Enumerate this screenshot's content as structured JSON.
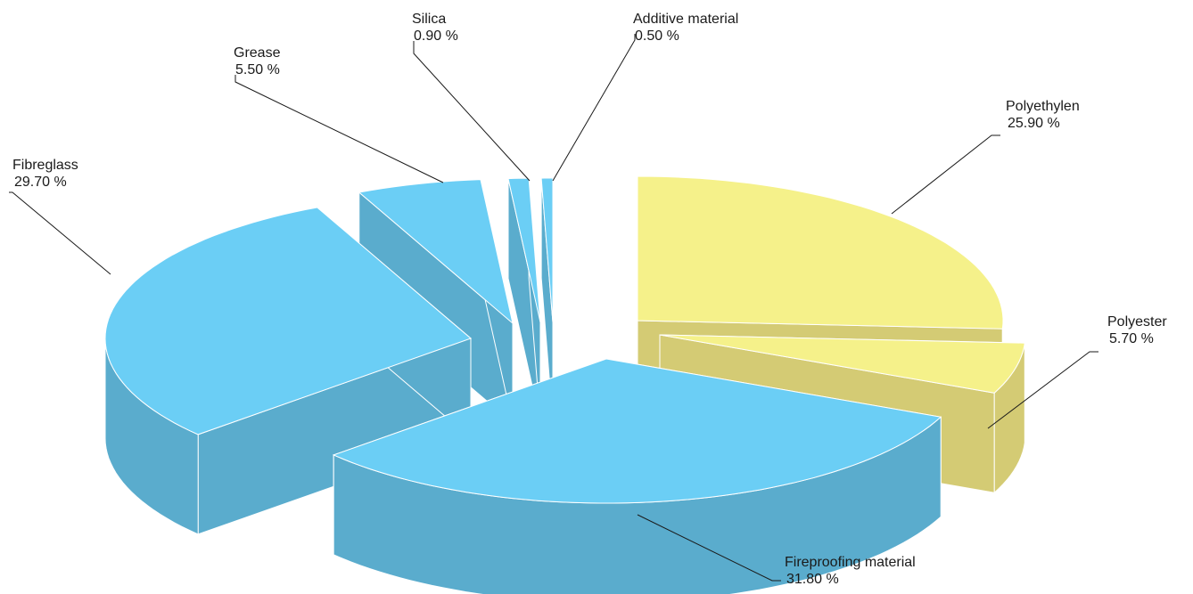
{
  "chart_data": {
    "type": "pie",
    "title": "",
    "unit": "%",
    "slices": [
      {
        "name": "Polyethylen",
        "value": 25.9,
        "label": "25.90 %",
        "group": "yellow"
      },
      {
        "name": "Polyester",
        "value": 5.7,
        "label": "5.70 %",
        "group": "yellow"
      },
      {
        "name": "Fireproofing material",
        "value": 31.8,
        "label": "31.80 %",
        "group": "blue"
      },
      {
        "name": "Fibreglass",
        "value": 29.7,
        "label": "29.70 %",
        "group": "blue"
      },
      {
        "name": "Grease",
        "value": 5.5,
        "label": "5.50 %",
        "group": "blue"
      },
      {
        "name": "Silica",
        "value": 0.9,
        "label": "0.90 %",
        "group": "blue"
      },
      {
        "name": "Additive material",
        "value": 0.5,
        "label": "0.50 %",
        "group": "blue"
      }
    ],
    "colors": {
      "yellow_top": "#f5f18a",
      "yellow_side": "#d4cb74",
      "blue_top": "#6bcef5",
      "blue_side": "#5aaccd",
      "edge": "#ffffff",
      "leader": "#1a1a1a"
    },
    "style": "3d-exploded-pie",
    "legend": "none"
  }
}
